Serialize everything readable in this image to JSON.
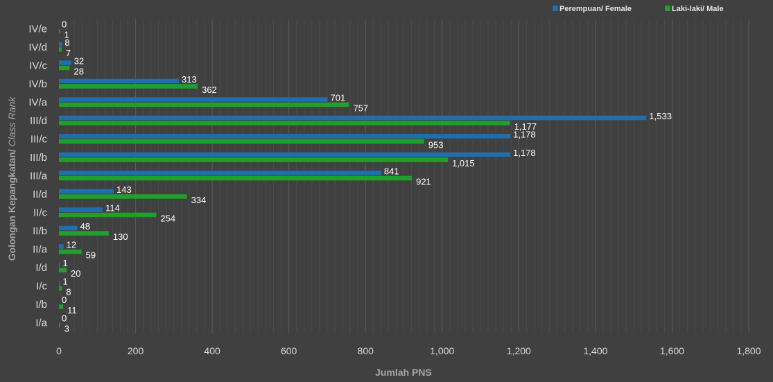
{
  "chart_data": {
    "type": "bar",
    "orientation": "horizontal",
    "xlabel": "Jumlah PNS",
    "ylabel": {
      "main": "Golongan Kepangkatan/ ",
      "italic": "Class Rank"
    },
    "xlim": [
      0,
      1800
    ],
    "xticks": [
      "0",
      "200",
      "400",
      "600",
      "800",
      "1,000",
      "1,200",
      "1,400",
      "1,600",
      "1,800"
    ],
    "grid": true,
    "legend_position": "top-right",
    "categories": [
      "IV/e",
      "IV/d",
      "IV/c",
      "IV/b",
      "IV/a",
      "III/d",
      "III/c",
      "III/b",
      "III/a",
      "II/d",
      "II/c",
      "II/b",
      "II/a",
      "I/d",
      "I/c",
      "I/b",
      "I/a"
    ],
    "series": [
      {
        "name": "Perempuan/ Female",
        "color": "#1f6fae",
        "values": [
          0,
          8,
          32,
          313,
          701,
          1533,
          1178,
          1178,
          841,
          143,
          114,
          48,
          12,
          1,
          1,
          0,
          0
        ],
        "labels": [
          "0",
          "8",
          "32",
          "313",
          "701",
          "1,533",
          "1,178",
          "1,178",
          "841",
          "143",
          "114",
          "48",
          "12",
          "1",
          "1",
          "0",
          "0"
        ]
      },
      {
        "name": "Laki-laki/ Male",
        "color": "#1fa02a",
        "values": [
          1,
          7,
          28,
          362,
          757,
          1177,
          953,
          1015,
          921,
          334,
          254,
          130,
          59,
          20,
          8,
          11,
          3
        ],
        "labels": [
          "1",
          "7",
          "28",
          "362",
          "757",
          "1,177",
          "953",
          "1,015",
          "921",
          "334",
          "254",
          "130",
          "59",
          "20",
          "8",
          "11",
          "3"
        ]
      }
    ]
  }
}
